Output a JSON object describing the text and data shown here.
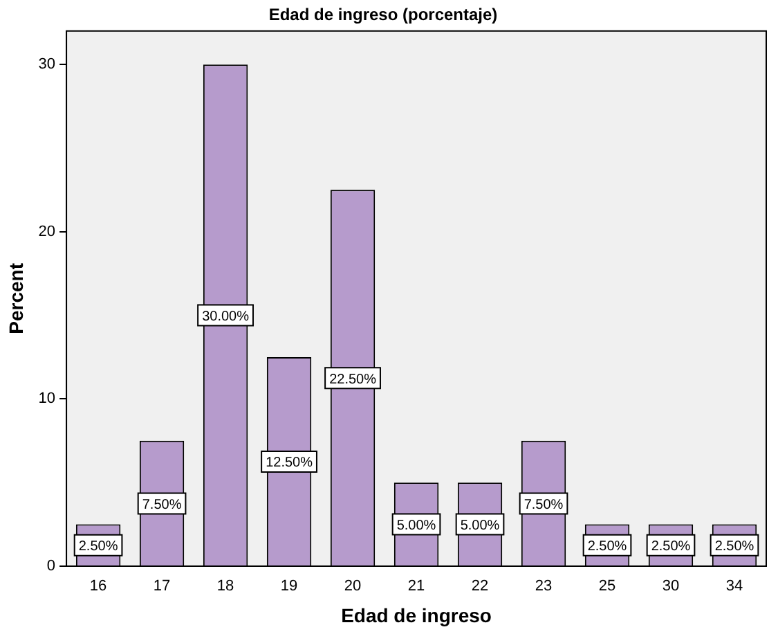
{
  "chart_data": {
    "type": "bar",
    "title": "Edad de ingreso (porcentaje)",
    "xlabel": "Edad de ingreso",
    "ylabel": "Percent",
    "categories": [
      "16",
      "17",
      "18",
      "19",
      "20",
      "21",
      "22",
      "23",
      "25",
      "30",
      "34"
    ],
    "values": [
      2.5,
      7.5,
      30,
      12.5,
      22.5,
      5,
      5,
      7.5,
      2.5,
      2.5,
      2.5
    ],
    "value_labels": [
      "2.50%",
      "7.50%",
      "30.00%",
      "12.50%",
      "22.50%",
      "5.00%",
      "5.00%",
      "7.50%",
      "2.50%",
      "2.50%",
      "2.50%"
    ],
    "color": "#b69bcc",
    "ylim": [
      0,
      32
    ],
    "yticks": [
      0,
      10,
      20,
      30
    ],
    "grid": false,
    "legend": false
  }
}
